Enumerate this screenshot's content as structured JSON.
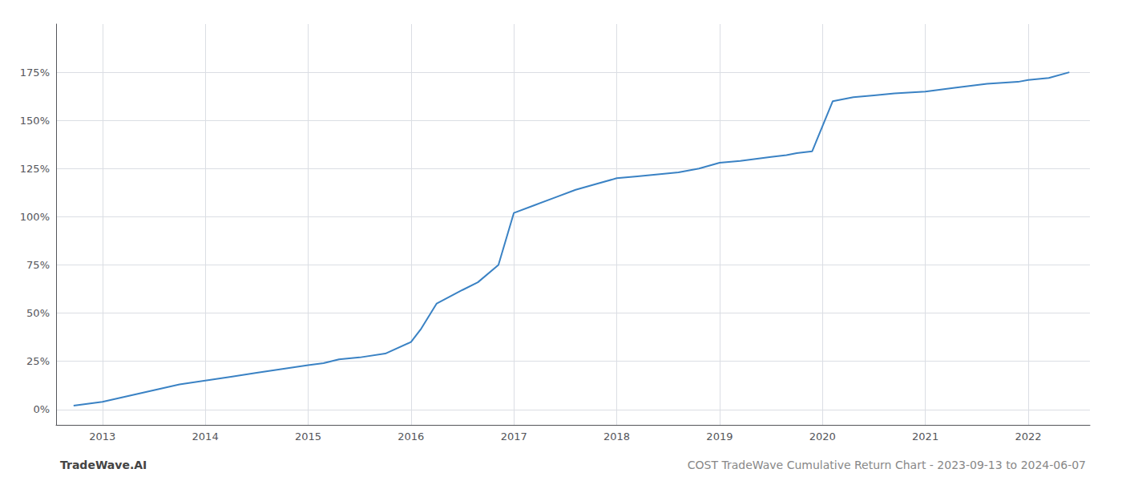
{
  "chart_data": {
    "type": "line",
    "title": "COST TradeWave Cumulative Return Chart - 2023-09-13 to 2024-06-07",
    "annotations": [
      "TradeWave.AI"
    ],
    "color": "#3a82c4",
    "grid": true,
    "x": [
      2012.72,
      2013.0,
      2013.25,
      2013.5,
      2013.75,
      2014.0,
      2014.25,
      2014.5,
      2014.75,
      2015.0,
      2015.15,
      2015.3,
      2015.5,
      2015.75,
      2016.0,
      2016.1,
      2016.25,
      2016.5,
      2016.65,
      2016.85,
      2017.0,
      2017.2,
      2017.4,
      2017.6,
      2017.8,
      2018.0,
      2018.2,
      2018.4,
      2018.6,
      2018.8,
      2019.0,
      2019.2,
      2019.5,
      2019.65,
      2019.75,
      2019.9,
      2020.1,
      2020.3,
      2020.5,
      2020.7,
      2021.0,
      2021.3,
      2021.6,
      2021.9,
      2022.0,
      2022.2,
      2022.4
    ],
    "values": [
      2,
      4,
      7,
      10,
      13,
      15,
      17,
      19,
      21,
      23,
      24,
      26,
      27,
      29,
      35,
      42,
      55,
      62,
      66,
      75,
      102,
      106,
      110,
      114,
      117,
      120,
      121,
      122,
      123,
      125,
      128,
      129,
      131,
      132,
      133,
      134,
      160,
      162,
      163,
      164,
      165,
      167,
      169,
      170,
      171,
      172,
      175
    ],
    "xlim": [
      2012.55,
      2022.6
    ],
    "xticks": [
      2013,
      2014,
      2015,
      2016,
      2017,
      2018,
      2019,
      2020,
      2021,
      2022
    ],
    "ylim": [
      -8,
      200
    ],
    "yticks": [
      {
        "value": 0,
        "label": "0%"
      },
      {
        "value": 25,
        "label": "25%"
      },
      {
        "value": 50,
        "label": "50%"
      },
      {
        "value": 75,
        "label": "75%"
      },
      {
        "value": 100,
        "label": "100%"
      },
      {
        "value": 125,
        "label": "125%"
      },
      {
        "value": 150,
        "label": "150%"
      },
      {
        "value": 175,
        "label": "175%"
      }
    ]
  }
}
